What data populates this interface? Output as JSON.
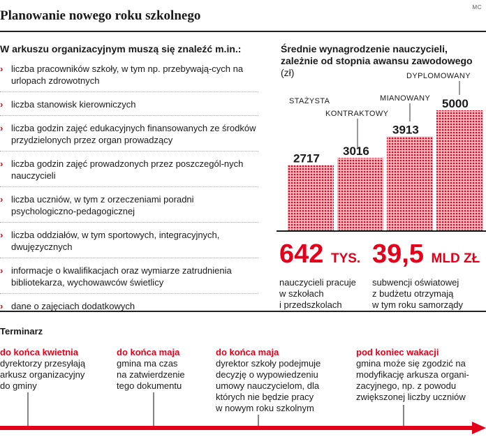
{
  "credit": "MC",
  "title": "Planowanie nowego roku szkolnego",
  "left_heading": "W arkuszu organizacyjnym muszą się znaleźć m.in.:",
  "items": [
    "liczba pracowników szkoły, w tym np. przebywają-cych na urlopach zdrowotnych",
    "liczba stanowisk kierowniczych",
    "liczba godzin zajęć edukacyjnych finansowanych ze środków przydzielonych przez organ prowadzący",
    "liczba godzin zajęć prowadzonych przez poszczegól-nych nauczycieli",
    "liczba uczniów, w tym z orzeczeniami poradni psychologiczno-pedagogicznej",
    "liczba oddziałów, w tym sportowych, integracyjnych, dwujęzycznych",
    "informacje o kwalifikacjach oraz wymiarze zatrudnienia bibliotekarza, wychowawców świetlicy",
    "dane o zajęciach dodatkowych"
  ],
  "chart_data": {
    "type": "bar",
    "title": "Średnie wynagrodzenie nauczycieli, zależnie od stopnia awansu zawodowego",
    "unit": "(zł)",
    "categories": [
      "STAŻYSTA",
      "KONTRAKTOWY",
      "MIANOWANY",
      "DYPLOMOWANY"
    ],
    "values": [
      2717,
      3016,
      3913,
      5000
    ],
    "value_labels": [
      "2717",
      "3016",
      "3913",
      "5000"
    ],
    "ylim": [
      0,
      5000
    ],
    "grid": false,
    "bar_color": "#e2001a"
  },
  "stats": [
    {
      "value": "642",
      "unit": "TYS.",
      "text": [
        "nauczycieli pracuje",
        "w szkołach",
        "i przedszkolach"
      ]
    },
    {
      "value": "39,5",
      "unit": "MLD ZŁ",
      "text": [
        "subwencji oświatowej",
        "z budżetu otrzymają",
        "w tym roku samorządy"
      ]
    }
  ],
  "timeline_heading": "Terminarz",
  "events": [
    {
      "when": "do końca kwietnia",
      "text": [
        "dyrektorzy przesyłają",
        "arkusz organizacyjny",
        "do gminy"
      ]
    },
    {
      "when": "do końca maja",
      "text": [
        "gmina ma czas",
        "na zatwierdzenie",
        "tego dokumentu"
      ]
    },
    {
      "when": "do końca maja",
      "text": [
        "dyrektor szkoły podejmuje",
        "decyzję o wypowiedzeniu",
        "umowy nauczycielom, dla",
        "których nie będzie pracy",
        "w nowym roku szkolnym"
      ]
    },
    {
      "when": "pod koniec wakacji",
      "text": [
        "gmina może się zgodzić na",
        "modyfikację arkusza organi-",
        "zacyjnego, np. z powodu",
        "zwiększonej liczby uczniów"
      ]
    }
  ],
  "colors": {
    "accent": "#e2001a",
    "text": "#1a1a1a"
  }
}
